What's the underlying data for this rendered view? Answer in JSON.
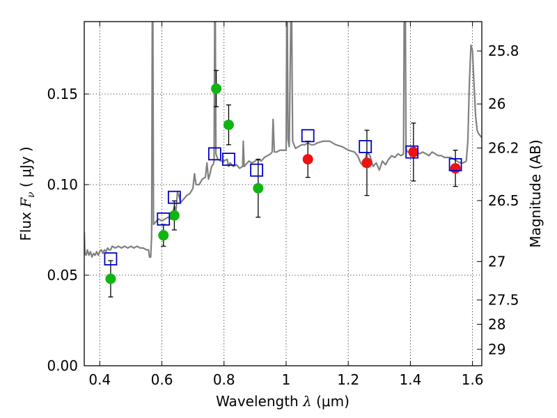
{
  "chart_data": {
    "type": "scatter",
    "xlabel": {
      "prefix": "Wavelength  ",
      "symbol": "λ",
      "unit": " (μm)"
    },
    "ylabel": {
      "prefix": "Flux  ",
      "symbol": "F",
      "sub": "ν",
      "unit": "  ( μJy )"
    },
    "y2label": "Magnitude (AB)",
    "xlim": [
      0.35,
      1.63
    ],
    "ylim": [
      0.0,
      0.19
    ],
    "grid": true,
    "x_ticks": [
      0.4,
      0.6,
      0.8,
      1.0,
      1.2,
      1.4,
      1.6
    ],
    "x_tick_labels": [
      "0.4",
      "0.6",
      "0.8",
      "1",
      "1.2",
      "1.4",
      "1.6"
    ],
    "y_ticks": [
      0.0,
      0.05,
      0.1,
      0.15
    ],
    "y_tick_labels": [
      "0.00",
      "0.05",
      "0.10",
      "0.15"
    ],
    "y2_ticks": [
      {
        "label": "25.8",
        "mag": 25.8
      },
      {
        "label": "26",
        "mag": 26.0
      },
      {
        "label": "26.2",
        "mag": 26.2
      },
      {
        "label": "26.5",
        "mag": 26.5
      },
      {
        "label": "27",
        "mag": 27.0
      },
      {
        "label": "27.5",
        "mag": 27.5
      },
      {
        "label": "28",
        "mag": 28.0
      },
      {
        "label": "29",
        "mag": 29.0
      }
    ],
    "colors": {
      "model": "#808080",
      "green": "#11b511",
      "red": "#ee1111",
      "model_box": "#0000cc"
    },
    "series": [
      {
        "type": "line",
        "points": [
          [
            0.35,
            0.074
          ],
          [
            0.352,
            0.062
          ],
          [
            0.356,
            0.061
          ],
          [
            0.36,
            0.064
          ],
          [
            0.365,
            0.061
          ],
          [
            0.37,
            0.063
          ],
          [
            0.375,
            0.06
          ],
          [
            0.38,
            0.062
          ],
          [
            0.385,
            0.061
          ],
          [
            0.39,
            0.063
          ],
          [
            0.395,
            0.061
          ],
          [
            0.4,
            0.063
          ],
          [
            0.405,
            0.064
          ],
          [
            0.41,
            0.062
          ],
          [
            0.415,
            0.064
          ],
          [
            0.42,
            0.063
          ],
          [
            0.425,
            0.065
          ],
          [
            0.43,
            0.064
          ],
          [
            0.435,
            0.064
          ],
          [
            0.44,
            0.066
          ],
          [
            0.45,
            0.065
          ],
          [
            0.46,
            0.066
          ],
          [
            0.47,
            0.065
          ],
          [
            0.48,
            0.066
          ],
          [
            0.49,
            0.065
          ],
          [
            0.5,
            0.066
          ],
          [
            0.51,
            0.065
          ],
          [
            0.52,
            0.066
          ],
          [
            0.53,
            0.065
          ],
          [
            0.54,
            0.065
          ],
          [
            0.55,
            0.064
          ],
          [
            0.557,
            0.064
          ],
          [
            0.56,
            0.06
          ],
          [
            0.564,
            0.06
          ],
          [
            0.567,
            0.072
          ],
          [
            0.569,
            0.19
          ],
          [
            0.571,
            0.19
          ],
          [
            0.573,
            0.078
          ],
          [
            0.578,
            0.079
          ],
          [
            0.583,
            0.08
          ],
          [
            0.59,
            0.081
          ],
          [
            0.6,
            0.08
          ],
          [
            0.61,
            0.081
          ],
          [
            0.62,
            0.082
          ],
          [
            0.63,
            0.081
          ],
          [
            0.64,
            0.088
          ],
          [
            0.645,
            0.085
          ],
          [
            0.65,
            0.096
          ],
          [
            0.655,
            0.094
          ],
          [
            0.66,
            0.09
          ],
          [
            0.67,
            0.092
          ],
          [
            0.68,
            0.094
          ],
          [
            0.69,
            0.095
          ],
          [
            0.7,
            0.098
          ],
          [
            0.705,
            0.106
          ],
          [
            0.71,
            0.1
          ],
          [
            0.72,
            0.1
          ],
          [
            0.73,
            0.103
          ],
          [
            0.74,
            0.104
          ],
          [
            0.745,
            0.112
          ],
          [
            0.75,
            0.103
          ],
          [
            0.755,
            0.106
          ],
          [
            0.76,
            0.11
          ],
          [
            0.765,
            0.111
          ],
          [
            0.768,
            0.113
          ],
          [
            0.77,
            0.19
          ],
          [
            0.772,
            0.19
          ],
          [
            0.774,
            0.117
          ],
          [
            0.78,
            0.114
          ],
          [
            0.79,
            0.113
          ],
          [
            0.8,
            0.113
          ],
          [
            0.81,
            0.114
          ],
          [
            0.815,
            0.11
          ],
          [
            0.82,
            0.112
          ],
          [
            0.83,
            0.11
          ],
          [
            0.84,
            0.111
          ],
          [
            0.85,
            0.109
          ],
          [
            0.86,
            0.11
          ],
          [
            0.862,
            0.124
          ],
          [
            0.865,
            0.11
          ],
          [
            0.87,
            0.111
          ],
          [
            0.88,
            0.113
          ],
          [
            0.89,
            0.112
          ],
          [
            0.9,
            0.113
          ],
          [
            0.91,
            0.114
          ],
          [
            0.92,
            0.113
          ],
          [
            0.93,
            0.115
          ],
          [
            0.94,
            0.116
          ],
          [
            0.95,
            0.117
          ],
          [
            0.955,
            0.118
          ],
          [
            0.958,
            0.136
          ],
          [
            0.962,
            0.118
          ],
          [
            0.97,
            0.118
          ],
          [
            0.98,
            0.119
          ],
          [
            0.99,
            0.119
          ],
          [
            1.0,
            0.119
          ],
          [
            1.002,
            0.19
          ],
          [
            1.004,
            0.19
          ],
          [
            1.006,
            0.125
          ],
          [
            1.01,
            0.121
          ],
          [
            1.015,
            0.19
          ],
          [
            1.018,
            0.19
          ],
          [
            1.021,
            0.124
          ],
          [
            1.03,
            0.12
          ],
          [
            1.04,
            0.121
          ],
          [
            1.05,
            0.122
          ],
          [
            1.06,
            0.122
          ],
          [
            1.07,
            0.123
          ],
          [
            1.08,
            0.122
          ],
          [
            1.09,
            0.122
          ],
          [
            1.1,
            0.123
          ],
          [
            1.12,
            0.124
          ],
          [
            1.14,
            0.124
          ],
          [
            1.16,
            0.122
          ],
          [
            1.18,
            0.121
          ],
          [
            1.2,
            0.119
          ],
          [
            1.22,
            0.118
          ],
          [
            1.23,
            0.116
          ],
          [
            1.24,
            0.112
          ],
          [
            1.25,
            0.11
          ],
          [
            1.26,
            0.118
          ],
          [
            1.27,
            0.116
          ],
          [
            1.28,
            0.11
          ],
          [
            1.29,
            0.112
          ],
          [
            1.3,
            0.108
          ],
          [
            1.31,
            0.113
          ],
          [
            1.32,
            0.111
          ],
          [
            1.33,
            0.114
          ],
          [
            1.34,
            0.116
          ],
          [
            1.35,
            0.115
          ],
          [
            1.36,
            0.117
          ],
          [
            1.37,
            0.116
          ],
          [
            1.378,
            0.117
          ],
          [
            1.38,
            0.19
          ],
          [
            1.384,
            0.19
          ],
          [
            1.386,
            0.12
          ],
          [
            1.39,
            0.118
          ],
          [
            1.4,
            0.118
          ],
          [
            1.41,
            0.117
          ],
          [
            1.42,
            0.118
          ],
          [
            1.43,
            0.117
          ],
          [
            1.44,
            0.118
          ],
          [
            1.45,
            0.117
          ],
          [
            1.46,
            0.116
          ],
          [
            1.47,
            0.118
          ],
          [
            1.48,
            0.117
          ],
          [
            1.49,
            0.116
          ],
          [
            1.5,
            0.116
          ],
          [
            1.51,
            0.115
          ],
          [
            1.52,
            0.115
          ],
          [
            1.53,
            0.115
          ],
          [
            1.54,
            0.114
          ],
          [
            1.55,
            0.113
          ],
          [
            1.56,
            0.112
          ],
          [
            1.57,
            0.112
          ],
          [
            1.58,
            0.113
          ],
          [
            1.585,
            0.124
          ],
          [
            1.59,
            0.156
          ],
          [
            1.595,
            0.177
          ],
          [
            1.6,
            0.174
          ],
          [
            1.605,
            0.155
          ],
          [
            1.61,
            0.138
          ],
          [
            1.615,
            0.13
          ],
          [
            1.62,
            0.128
          ],
          [
            1.63,
            0.126
          ]
        ]
      },
      {
        "type": "scatter",
        "marker": "circle",
        "points": [
          {
            "x": 0.435,
            "y": 0.048,
            "err": 0.01
          },
          {
            "x": 0.605,
            "y": 0.072,
            "err": 0.006
          },
          {
            "x": 0.64,
            "y": 0.083,
            "err": 0.008
          },
          {
            "x": 0.775,
            "y": 0.153,
            "err": 0.01
          },
          {
            "x": 0.815,
            "y": 0.133,
            "err": 0.011
          },
          {
            "x": 0.91,
            "y": 0.098,
            "err": 0.016
          }
        ]
      },
      {
        "type": "scatter",
        "marker": "circle",
        "points": [
          {
            "x": 1.07,
            "y": 0.114,
            "err": 0.01
          },
          {
            "x": 1.26,
            "y": 0.112,
            "err": 0.018
          },
          {
            "x": 1.41,
            "y": 0.118,
            "err": 0.016
          },
          {
            "x": 1.545,
            "y": 0.109,
            "err": 0.01
          }
        ]
      },
      {
        "type": "scatter",
        "marker": "square",
        "points": [
          {
            "x": 0.435,
            "y": 0.059
          },
          {
            "x": 0.605,
            "y": 0.081
          },
          {
            "x": 0.64,
            "y": 0.093
          },
          {
            "x": 0.77,
            "y": 0.117
          },
          {
            "x": 0.815,
            "y": 0.114
          },
          {
            "x": 0.905,
            "y": 0.108
          },
          {
            "x": 1.07,
            "y": 0.127
          },
          {
            "x": 1.255,
            "y": 0.121
          },
          {
            "x": 1.405,
            "y": 0.118
          },
          {
            "x": 1.545,
            "y": 0.111
          }
        ]
      }
    ]
  }
}
